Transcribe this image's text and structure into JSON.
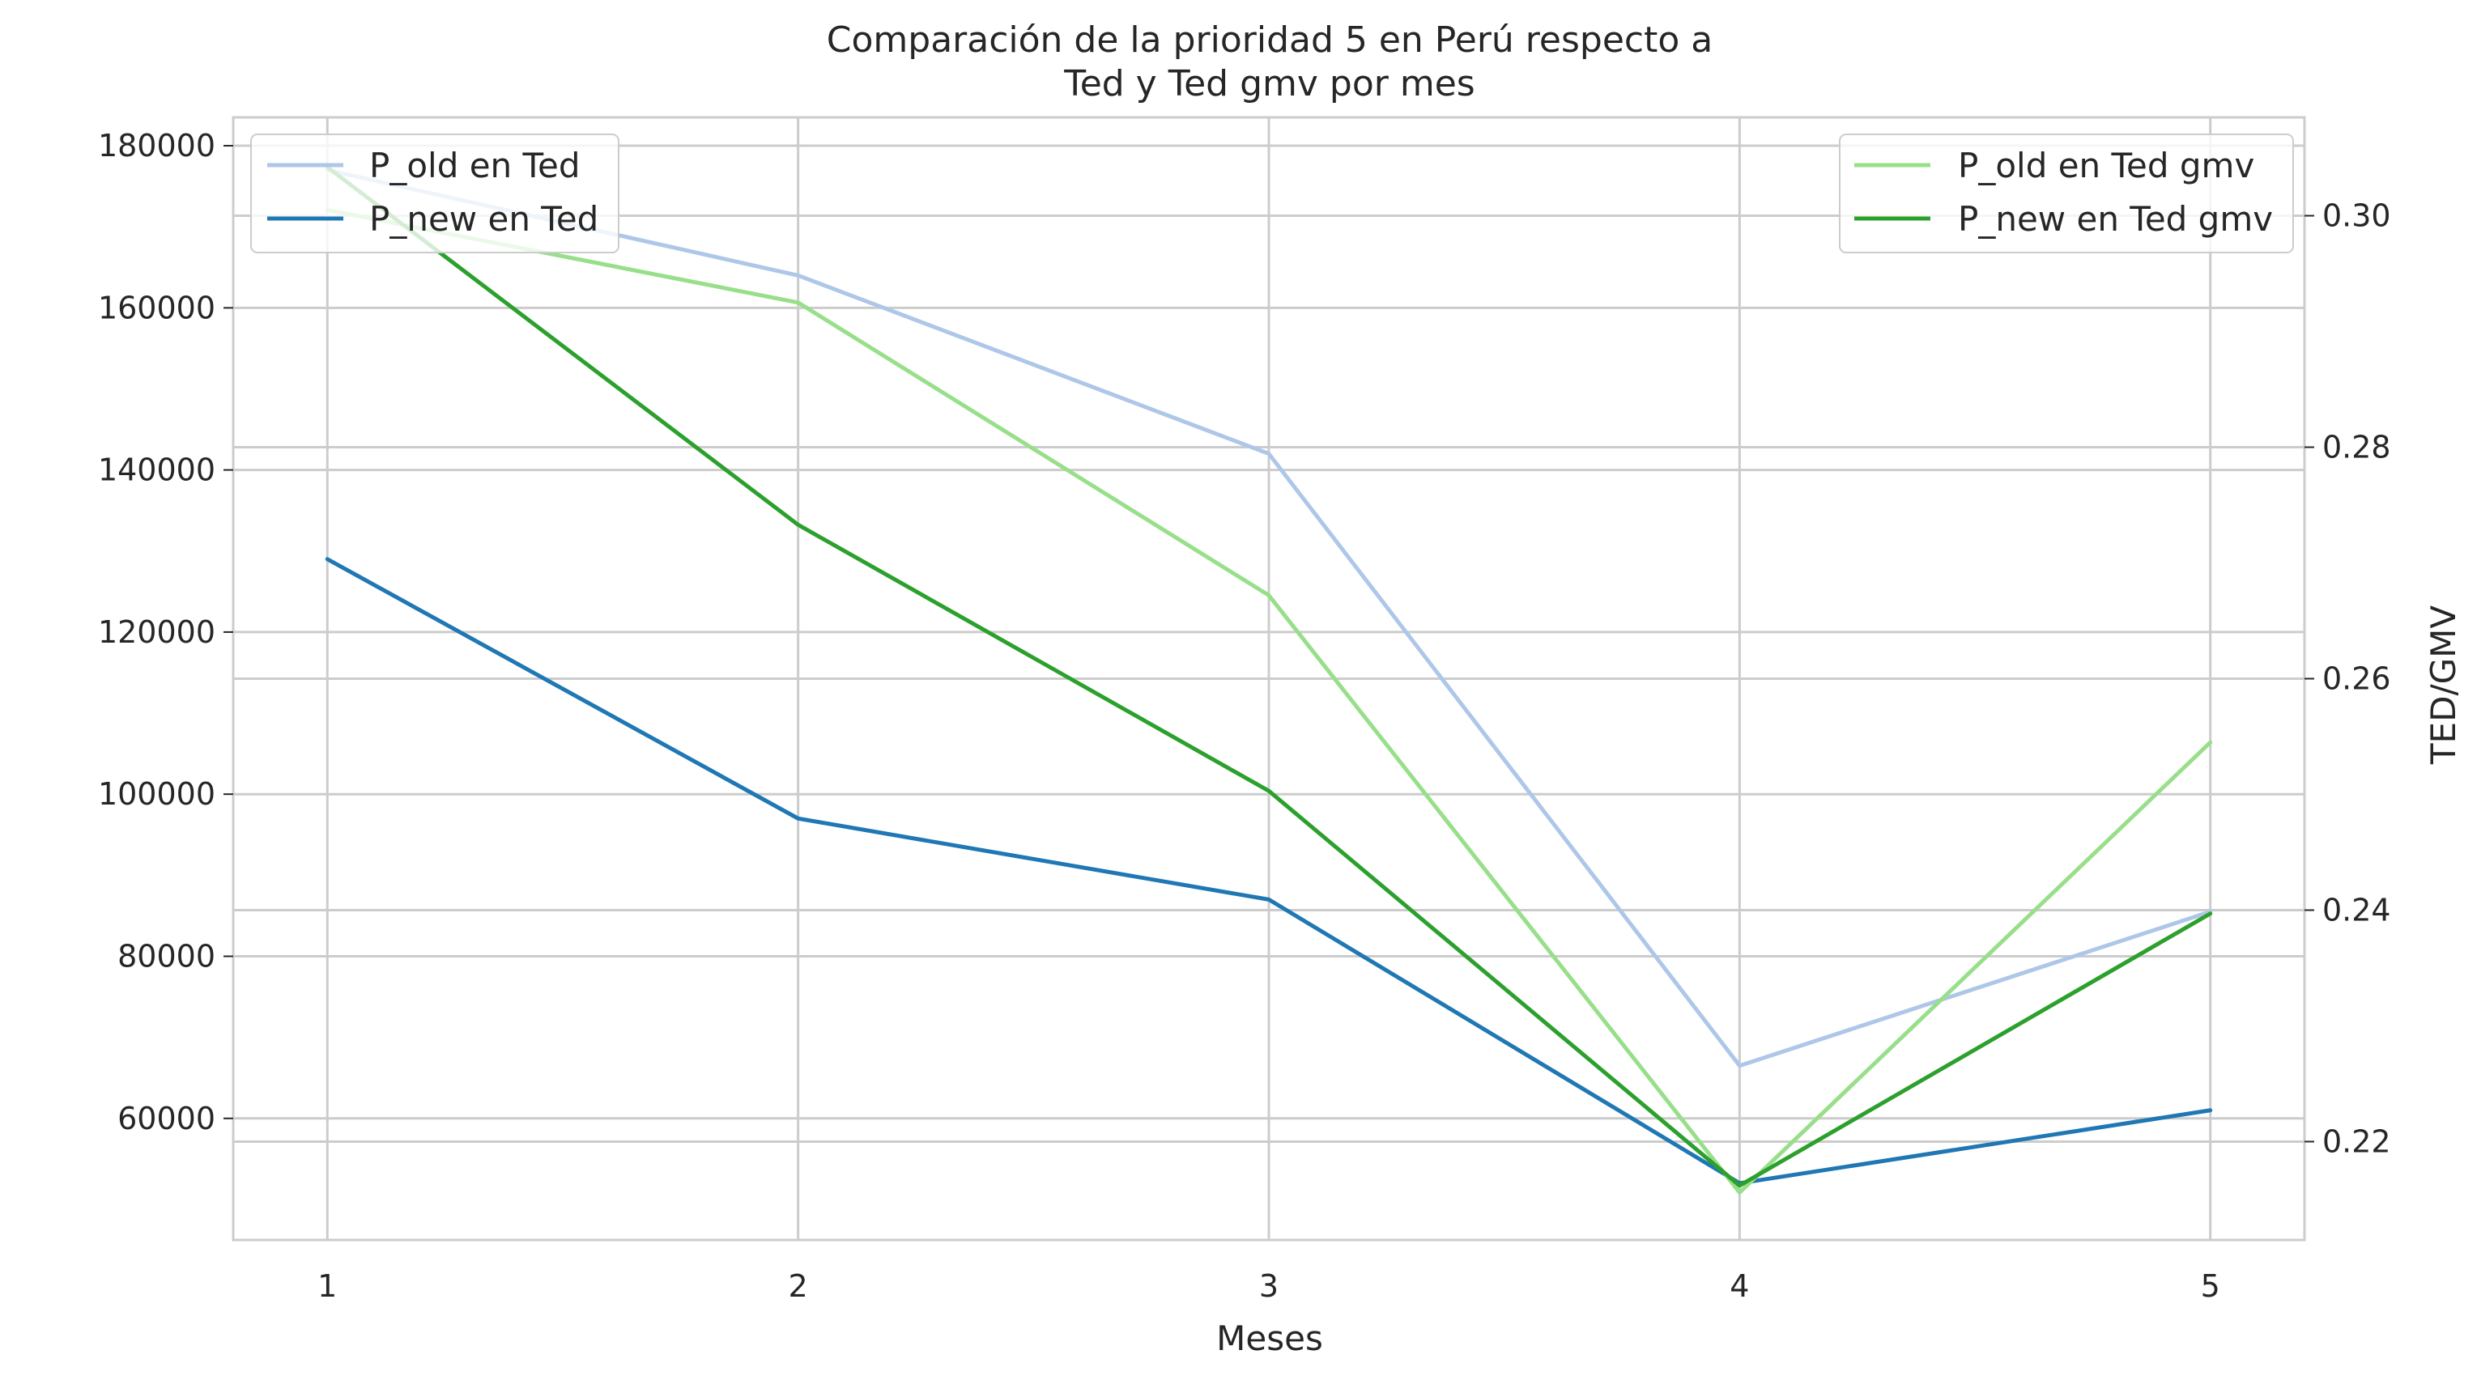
{
  "chart_data": {
    "type": "line",
    "title_lines": [
      "Comparación de la prioridad 5 en Perú respecto a",
      "Ted y Ted gmv por mes"
    ],
    "xlabel": "Meses",
    "ylabel_left": "",
    "ylabel_right": "TED/GMV",
    "x": [
      1,
      2,
      3,
      4,
      5
    ],
    "x_tick_labels": [
      "1",
      "2",
      "3",
      "4",
      "5"
    ],
    "xlim": [
      0.8,
      5.2
    ],
    "left_axis": {
      "ylim": [
        45000,
        183500
      ],
      "ticks": [
        60000,
        80000,
        100000,
        120000,
        140000,
        160000,
        180000
      ],
      "tick_labels": [
        "60000",
        "80000",
        "100000",
        "120000",
        "140000",
        "160000",
        "180000"
      ],
      "legend_position": "upper-left",
      "series": [
        {
          "name": "P_old en Ted",
          "color": "#aec7e8",
          "values": [
            177000,
            164000,
            142000,
            66500,
            85500
          ]
        },
        {
          "name": "P_new en Ted",
          "color": "#1f77b4",
          "values": [
            129000,
            97000,
            87000,
            52000,
            61000
          ]
        }
      ]
    },
    "right_axis": {
      "ylim": [
        0.2115,
        0.3085
      ],
      "ticks": [
        0.22,
        0.24,
        0.26,
        0.28,
        0.3
      ],
      "tick_labels": [
        "0.22",
        "0.24",
        "0.26",
        "0.28",
        "0.30"
      ],
      "legend_position": "upper-right",
      "series": [
        {
          "name": "P_old en Ted gmv",
          "color": "#98df8a",
          "values": [
            0.3005,
            0.2925,
            0.2672,
            0.2156,
            0.2545
          ]
        },
        {
          "name": "P_new en Ted gmv",
          "color": "#2ca02c",
          "values": [
            0.3042,
            0.2733,
            0.2503,
            0.2162,
            0.2397
          ]
        }
      ]
    },
    "grid": true,
    "spine_color": "#cccccc",
    "grid_color": "#cccccc"
  }
}
